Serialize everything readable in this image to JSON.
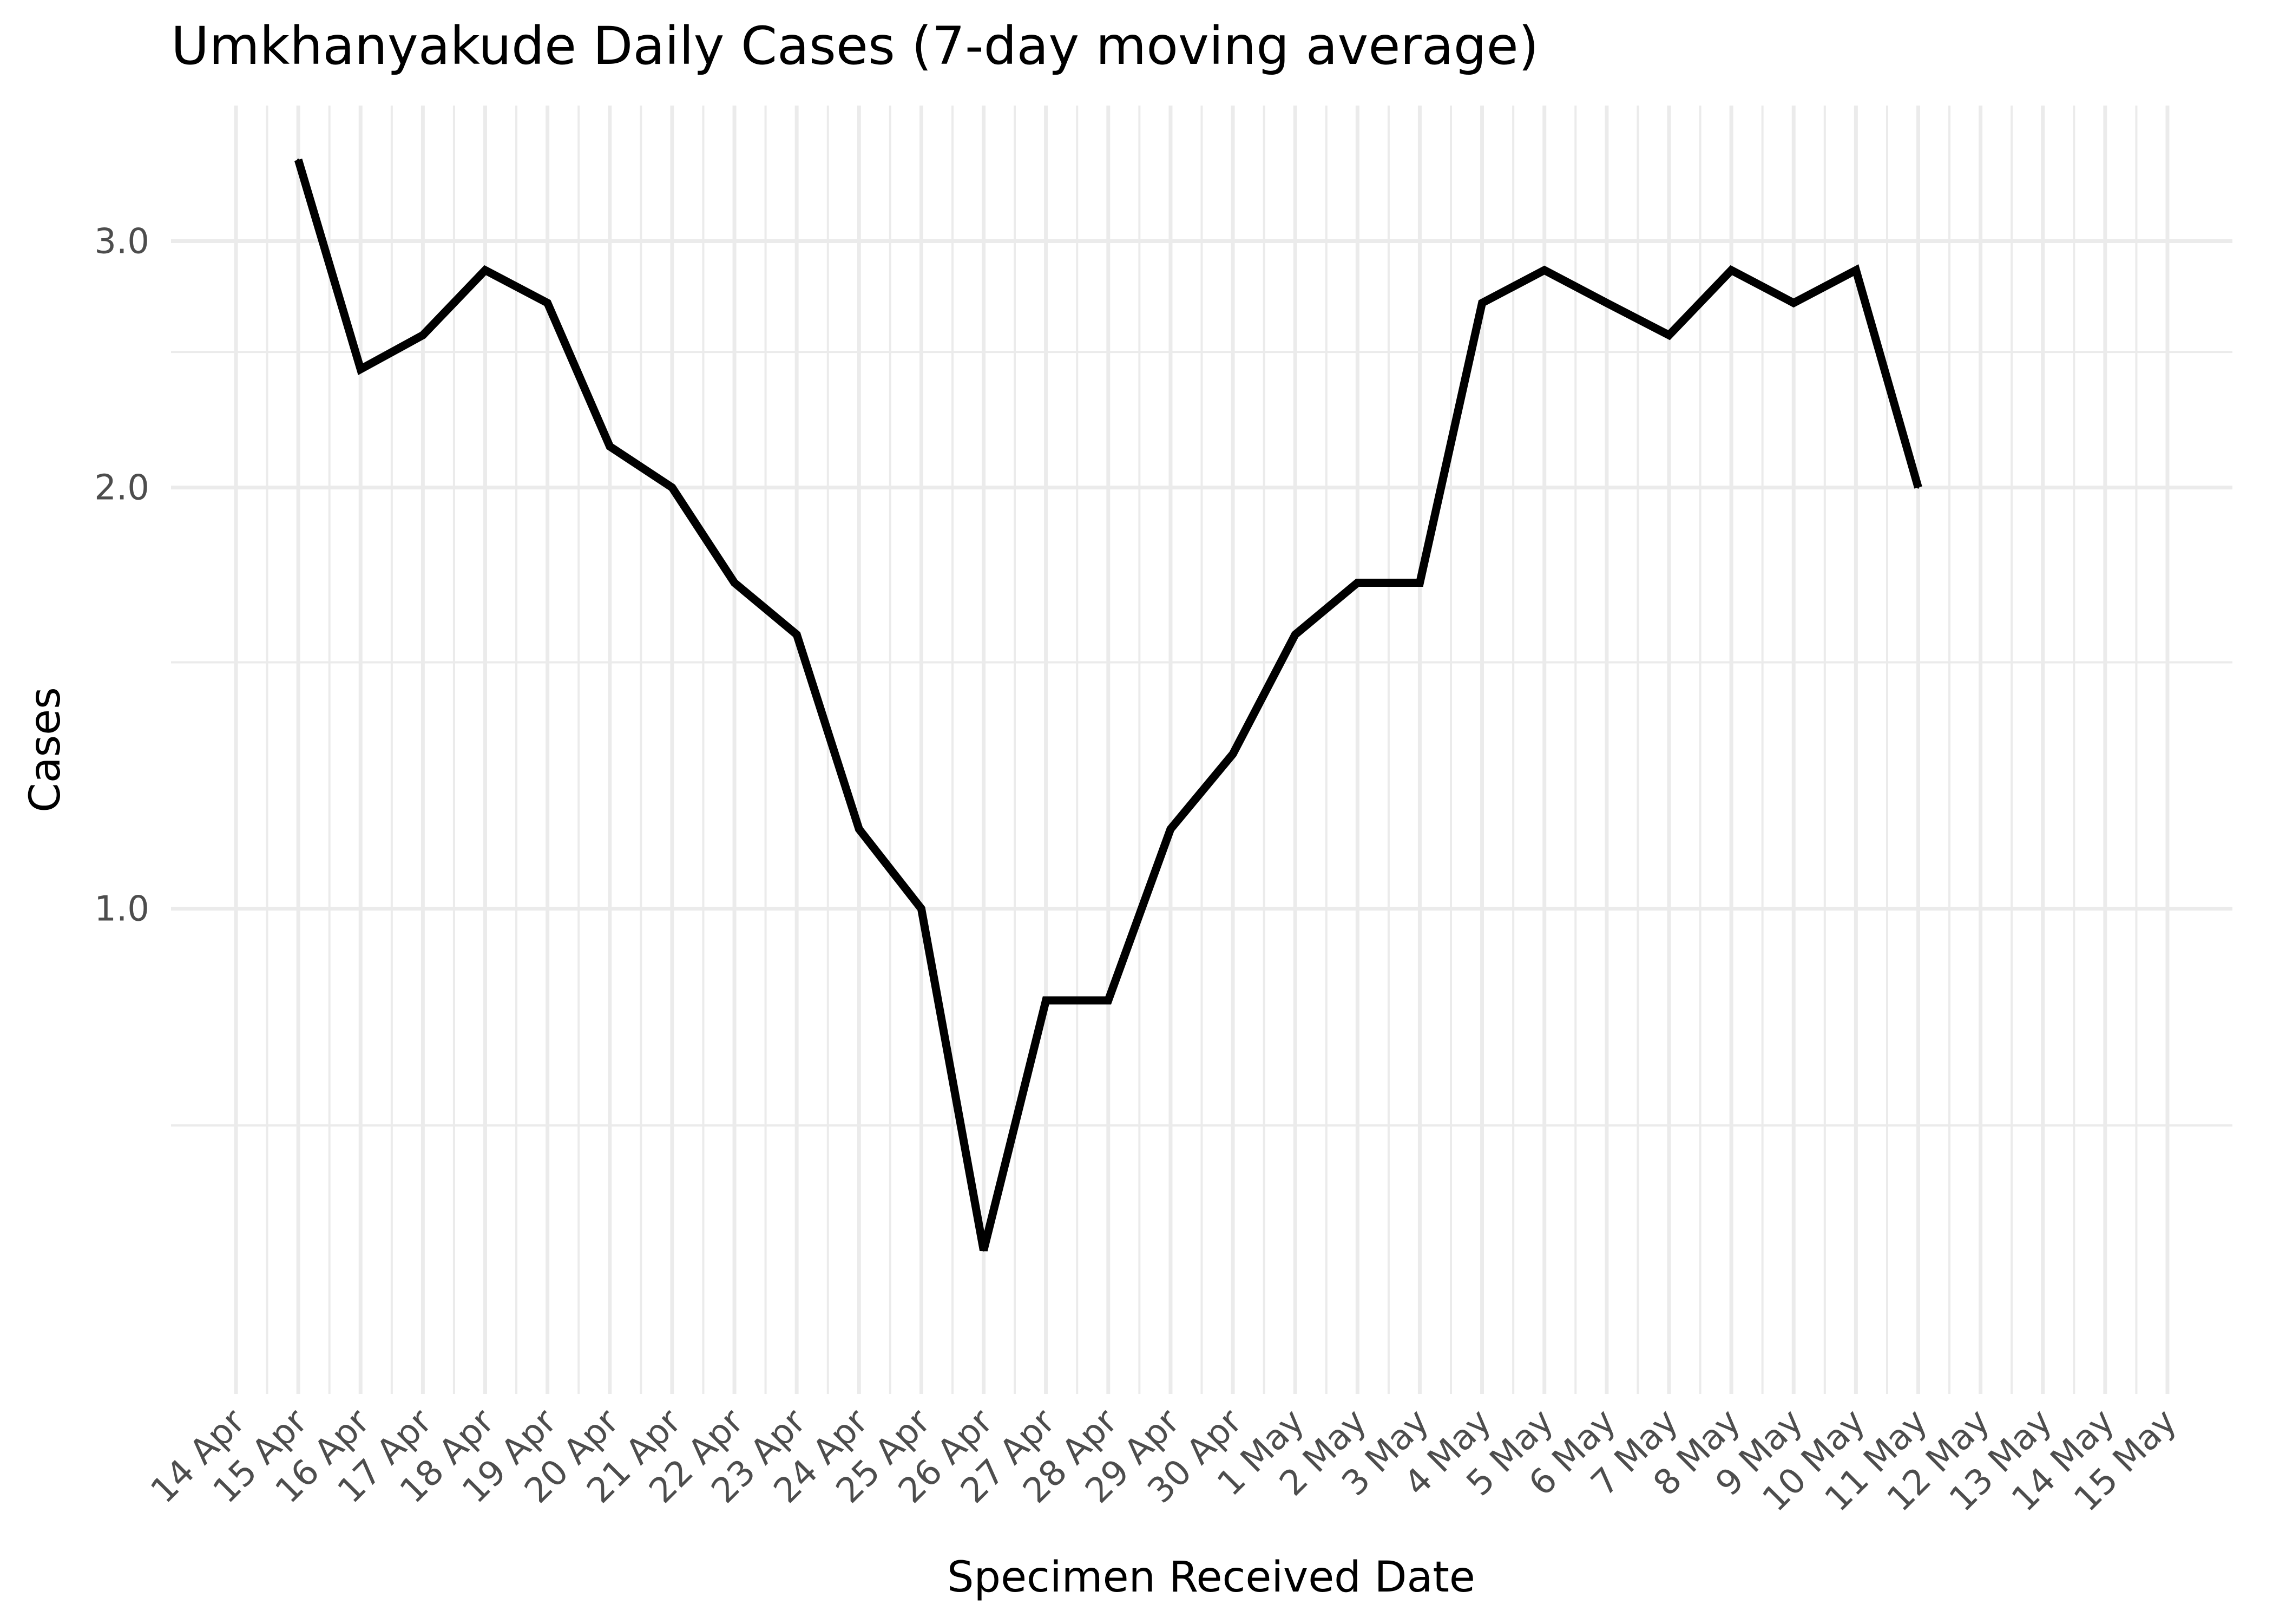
{
  "chart_data": {
    "type": "line",
    "title": "Umkhanyakude Daily Cases (7-day moving average)",
    "xlabel": "Specimen Received Date",
    "ylabel": "Cases",
    "y_scale": "log",
    "y_ticks": [
      1.0,
      2.0,
      3.0
    ],
    "y_tick_labels": [
      "1.0",
      "2.0",
      "3.0"
    ],
    "y_minor_ticks": [
      0.7,
      1.5,
      2.5
    ],
    "ylim": [
      0.45,
      3.75
    ],
    "grid": true,
    "legend": "none",
    "x_tick_labels": [
      "14 Apr",
      "15 Apr",
      "16 Apr",
      "17 Apr",
      "18 Apr",
      "19 Apr",
      "20 Apr",
      "21 Apr",
      "22 Apr",
      "23 Apr",
      "24 Apr",
      "25 Apr",
      "26 Apr",
      "27 Apr",
      "28 Apr",
      "29 Apr",
      "30 Apr",
      "1 May",
      "2 May",
      "3 May",
      "4 May",
      "5 May",
      "6 May",
      "7 May",
      "8 May",
      "9 May",
      "10 May",
      "11 May",
      "12 May",
      "13 May",
      "14 May",
      "15 May"
    ],
    "series": [
      {
        "color": "#000000",
        "x": [
          "15 Apr",
          "16 Apr",
          "17 Apr",
          "18 Apr",
          "19 Apr",
          "20 Apr",
          "21 Apr",
          "22 Apr",
          "23 Apr",
          "24 Apr",
          "25 Apr",
          "26 Apr",
          "27 Apr",
          "28 Apr",
          "29 Apr",
          "30 Apr",
          "1 May",
          "2 May",
          "3 May",
          "4 May",
          "5 May",
          "6 May",
          "7 May",
          "8 May",
          "9 May",
          "10 May",
          "11 May"
        ],
        "values": [
          3.43,
          2.43,
          2.57,
          2.86,
          2.71,
          2.14,
          2.0,
          1.71,
          1.57,
          1.14,
          1.0,
          0.57,
          0.86,
          0.86,
          1.14,
          1.29,
          1.57,
          1.71,
          1.71,
          2.71,
          2.86,
          2.71,
          2.57,
          2.86,
          2.71,
          2.86,
          2.0
        ]
      }
    ]
  }
}
